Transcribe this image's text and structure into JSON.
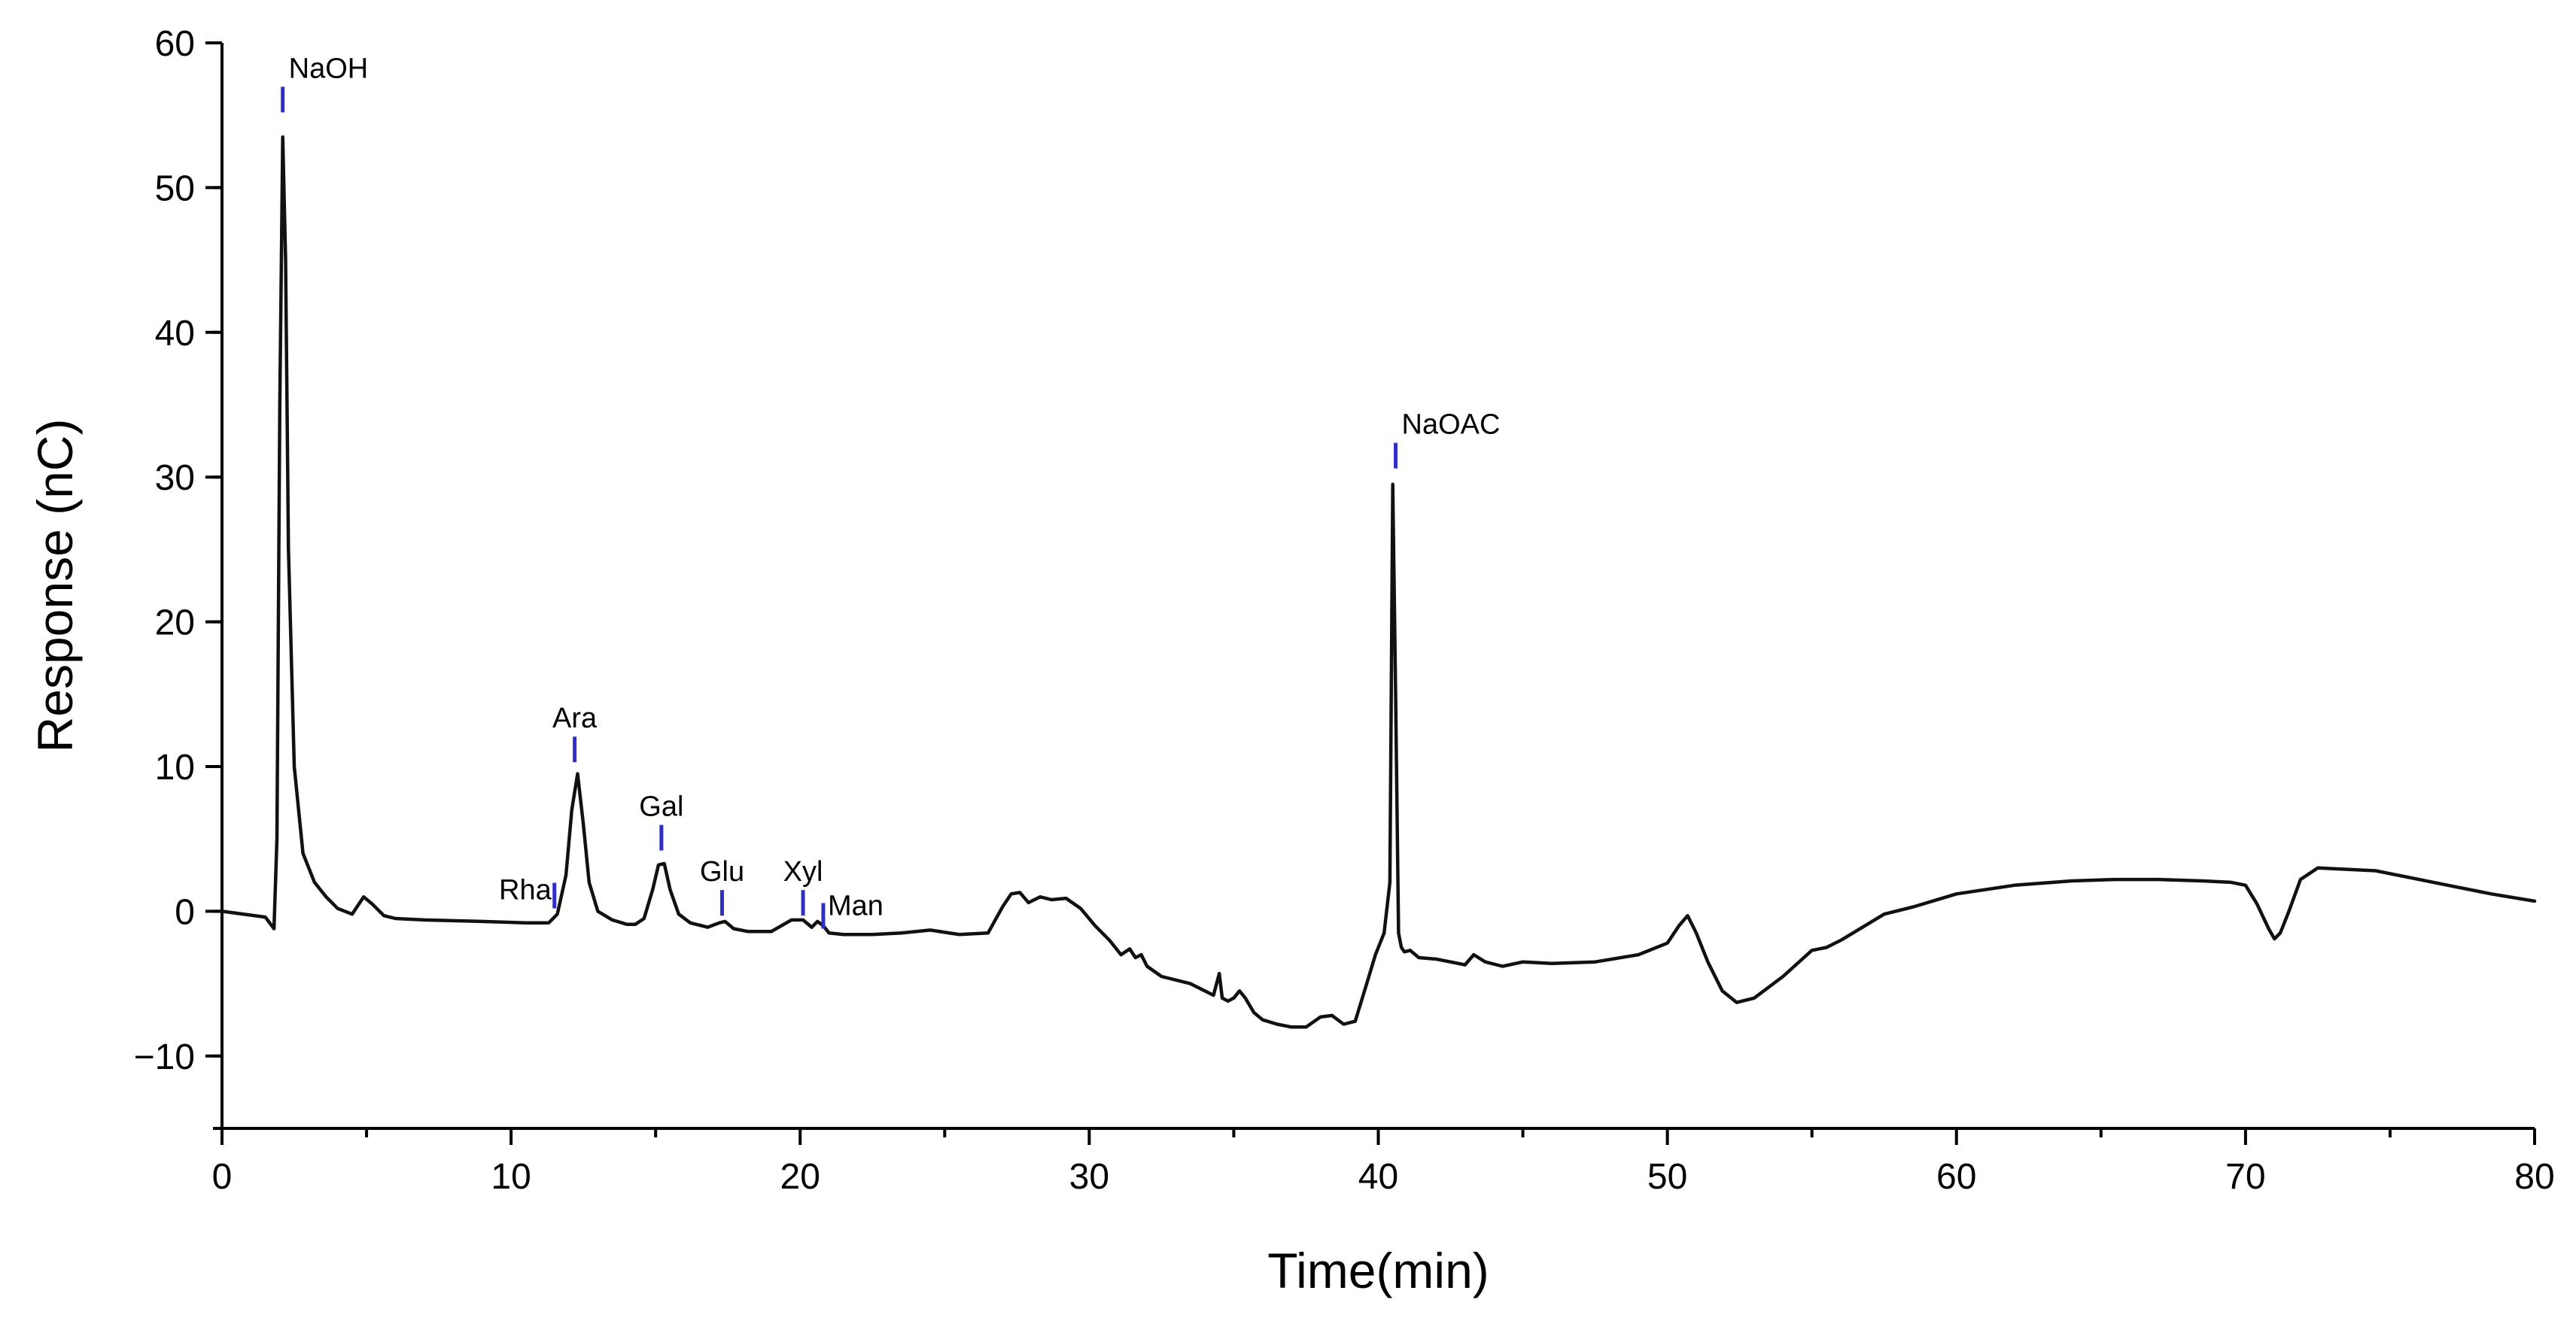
{
  "chart_data": {
    "type": "line",
    "title": "",
    "xlabel": "Time(min)",
    "ylabel": "Response (nC)",
    "xlim": [
      0,
      80
    ],
    "ylim": [
      -15,
      60
    ],
    "xticks": [
      0,
      10,
      20,
      30,
      40,
      50,
      60,
      70,
      80
    ],
    "yticks": [
      -10,
      0,
      10,
      20,
      30,
      40,
      50,
      60
    ],
    "xtick_labels": [
      "0",
      "10",
      "20",
      "30",
      "40",
      "50",
      "60",
      "70",
      "80"
    ],
    "ytick_labels": [
      "−10",
      "0",
      "10",
      "20",
      "30",
      "40",
      "50",
      "60"
    ],
    "grid": false,
    "legend": "none",
    "colors": {
      "trace": "#111111",
      "marker": "#2f2fc8"
    },
    "series": [
      {
        "x": [
          0,
          1.5,
          1.8,
          1.9,
          2.0,
          2.1,
          2.2,
          2.3,
          2.5,
          2.8,
          3.2,
          3.6,
          4.0,
          4.5,
          4.9,
          5.2,
          5.6,
          6.0,
          7.0,
          9.0,
          10.5,
          11.3,
          11.6,
          11.9,
          12.1,
          12.3,
          12.5,
          12.7,
          13.0,
          13.5,
          14.0,
          14.3,
          14.6,
          14.9,
          15.1,
          15.3,
          15.5,
          15.8,
          16.2,
          16.8,
          17.2,
          17.4,
          17.7,
          18.2,
          19.0,
          19.7,
          20.1,
          20.4,
          20.6,
          20.8,
          21.0,
          21.5,
          22.5,
          23.5,
          24.5,
          25.5,
          26.5,
          27.0,
          27.3,
          27.6,
          27.9,
          28.3,
          28.7,
          29.2,
          29.7,
          30.2,
          30.7,
          31.1,
          31.4,
          31.6,
          31.8,
          32.0,
          32.5,
          33.5,
          34.3,
          34.5,
          34.6,
          34.8,
          35.0,
          35.2,
          35.4,
          35.7,
          36.0,
          36.5,
          37.0,
          37.5,
          38.0,
          38.4,
          38.8,
          39.2,
          39.6,
          39.9,
          40.2,
          40.4,
          40.5,
          40.6,
          40.7,
          40.8,
          40.9,
          41.1,
          41.4,
          42.0,
          42.5,
          43.0,
          43.3,
          43.7,
          44.3,
          45.0,
          46.0,
          47.5,
          49.0,
          50.0,
          50.4,
          50.7,
          51.0,
          51.4,
          51.9,
          52.4,
          53.0,
          54.0,
          55.0,
          55.5,
          56.0,
          57.0,
          57.5,
          58.5,
          60.0,
          62.0,
          64.0,
          65.5,
          67.0,
          68.5,
          69.5,
          70.0,
          70.4,
          70.8,
          71.0,
          71.2,
          71.5,
          71.9,
          72.5,
          73.5,
          74.5,
          75.5,
          77.0,
          78.5,
          80.0
        ],
        "y": [
          0.0,
          -0.4,
          -1.2,
          5.0,
          35.0,
          53.5,
          45.0,
          25.0,
          10.0,
          4.0,
          2.0,
          1.0,
          0.2,
          -0.2,
          1.0,
          0.5,
          -0.3,
          -0.5,
          -0.6,
          -0.7,
          -0.8,
          -0.8,
          -0.2,
          2.5,
          7.0,
          9.5,
          6.0,
          2.0,
          0.0,
          -0.6,
          -0.9,
          -0.9,
          -0.5,
          1.5,
          3.2,
          3.3,
          1.5,
          -0.2,
          -0.8,
          -1.1,
          -0.8,
          -0.7,
          -1.2,
          -1.4,
          -1.4,
          -0.6,
          -0.6,
          -1.1,
          -0.7,
          -1.0,
          -1.5,
          -1.6,
          -1.6,
          -1.5,
          -1.3,
          -1.6,
          -1.5,
          0.3,
          1.2,
          1.3,
          0.6,
          1.0,
          0.8,
          0.9,
          0.2,
          -1.0,
          -2.0,
          -3.0,
          -2.6,
          -3.2,
          -3.0,
          -3.8,
          -4.5,
          -5.0,
          -5.8,
          -4.3,
          -6.0,
          -6.2,
          -6.0,
          -5.5,
          -6.0,
          -7.0,
          -7.5,
          -7.8,
          -8.0,
          -8.0,
          -7.3,
          -7.2,
          -7.8,
          -7.6,
          -5.0,
          -3.0,
          -1.5,
          2.0,
          29.5,
          15.0,
          -1.5,
          -2.5,
          -2.8,
          -2.7,
          -3.2,
          -3.3,
          -3.5,
          -3.7,
          -3.0,
          -3.5,
          -3.8,
          -3.5,
          -3.6,
          -3.5,
          -3.0,
          -2.2,
          -1.0,
          -0.3,
          -1.5,
          -3.5,
          -5.5,
          -6.3,
          -6.0,
          -4.5,
          -2.7,
          -2.5,
          -2.0,
          -0.8,
          -0.2,
          0.3,
          1.2,
          1.8,
          2.1,
          2.2,
          2.2,
          2.1,
          2.0,
          1.8,
          0.5,
          -1.2,
          -1.9,
          -1.5,
          0.0,
          2.2,
          3.0,
          2.9,
          2.8,
          2.4,
          1.8,
          1.2,
          0.7
        ]
      }
    ],
    "annotations": [
      {
        "label": "NaOH",
        "x": 2.1,
        "y": 55.2
      },
      {
        "label": "Rha",
        "x": 11.5,
        "y": 0.2
      },
      {
        "label": "Ara",
        "x": 12.2,
        "y": 10.3
      },
      {
        "label": "Gal",
        "x": 15.2,
        "y": 4.2
      },
      {
        "label": "Glu",
        "x": 17.3,
        "y": -0.3
      },
      {
        "label": "Xyl",
        "x": 20.1,
        "y": -0.3
      },
      {
        "label": "Man",
        "x": 20.8,
        "y": -1.2
      },
      {
        "label": "NaOAC",
        "x": 40.6,
        "y": 30.6
      }
    ]
  }
}
